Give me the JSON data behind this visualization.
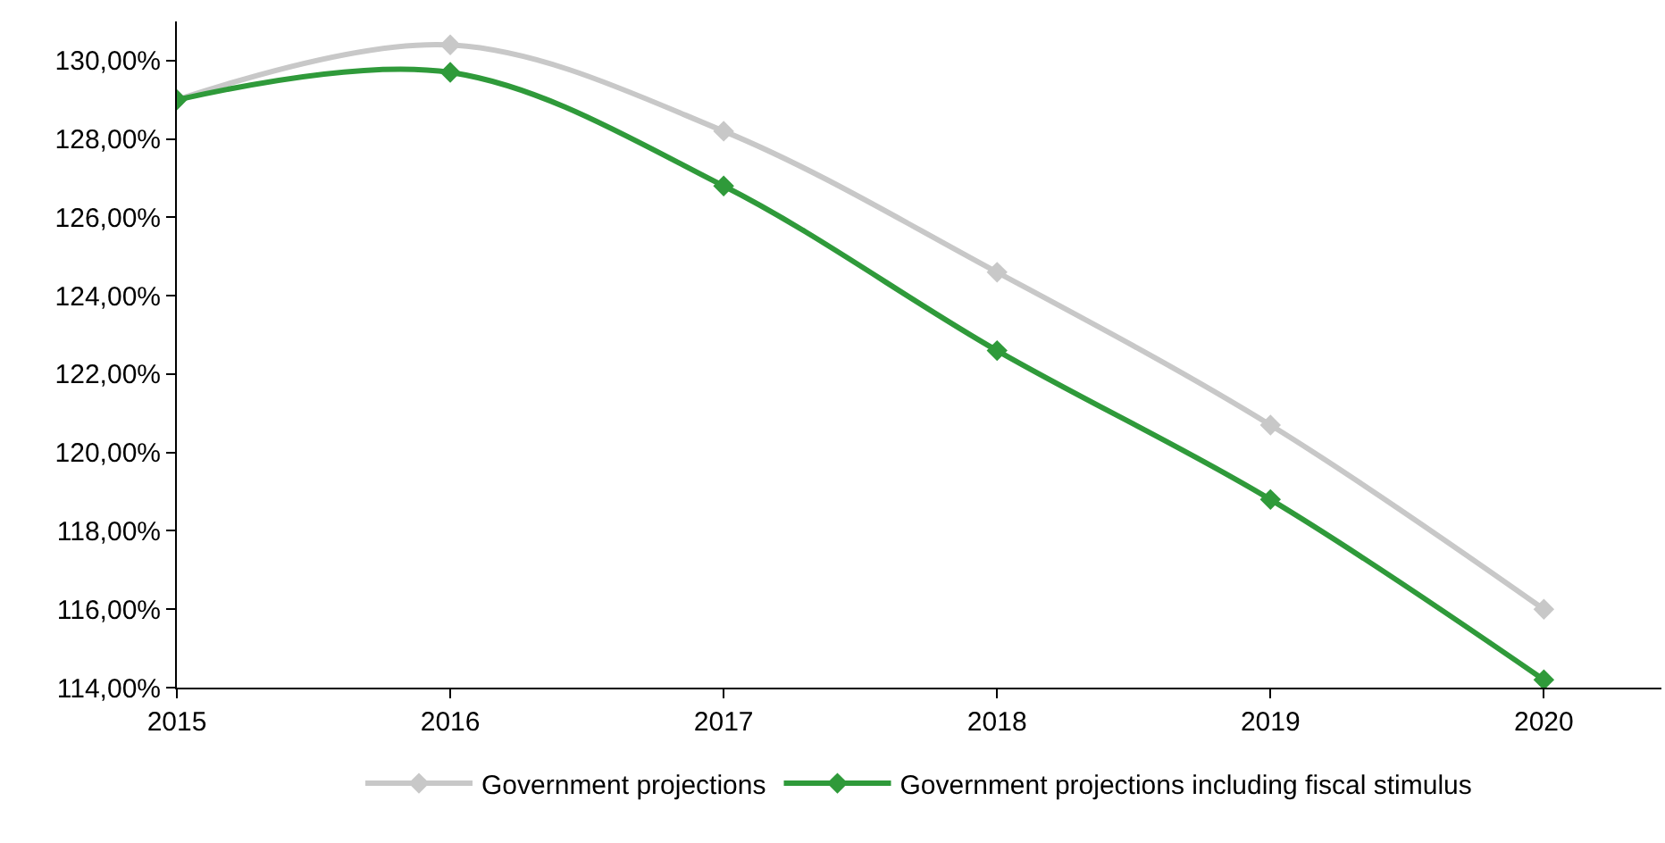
{
  "chart_data": {
    "type": "line",
    "x": [
      2015,
      2016,
      2017,
      2018,
      2019,
      2020
    ],
    "series": [
      {
        "name": "Government projections",
        "color": "#c8c8c8",
        "values": [
          129.0,
          130.4,
          128.2,
          124.6,
          120.7,
          116.0
        ]
      },
      {
        "name": "Government projections including fiscal stimulus",
        "color": "#2f9a3a",
        "values": [
          129.0,
          129.7,
          126.8,
          122.6,
          118.8,
          114.2
        ]
      }
    ],
    "xlim": [
      2015,
      2020.43
    ],
    "xticks": [
      2015,
      2016,
      2017,
      2018,
      2019,
      2020
    ],
    "ylim": [
      114,
      131
    ],
    "yticks": [
      {
        "value": 114,
        "label": "114,00%"
      },
      {
        "value": 116,
        "label": "116,00%"
      },
      {
        "value": 118,
        "label": "118,00%"
      },
      {
        "value": 120,
        "label": "120,00%"
      },
      {
        "value": 122,
        "label": "122,00%"
      },
      {
        "value": 124,
        "label": "124,00%"
      },
      {
        "value": 126,
        "label": "126,00%"
      },
      {
        "value": 128,
        "label": "128,00%"
      },
      {
        "value": 130,
        "label": "130,00%"
      }
    ],
    "marker": "diamond",
    "legend": "bottom"
  }
}
